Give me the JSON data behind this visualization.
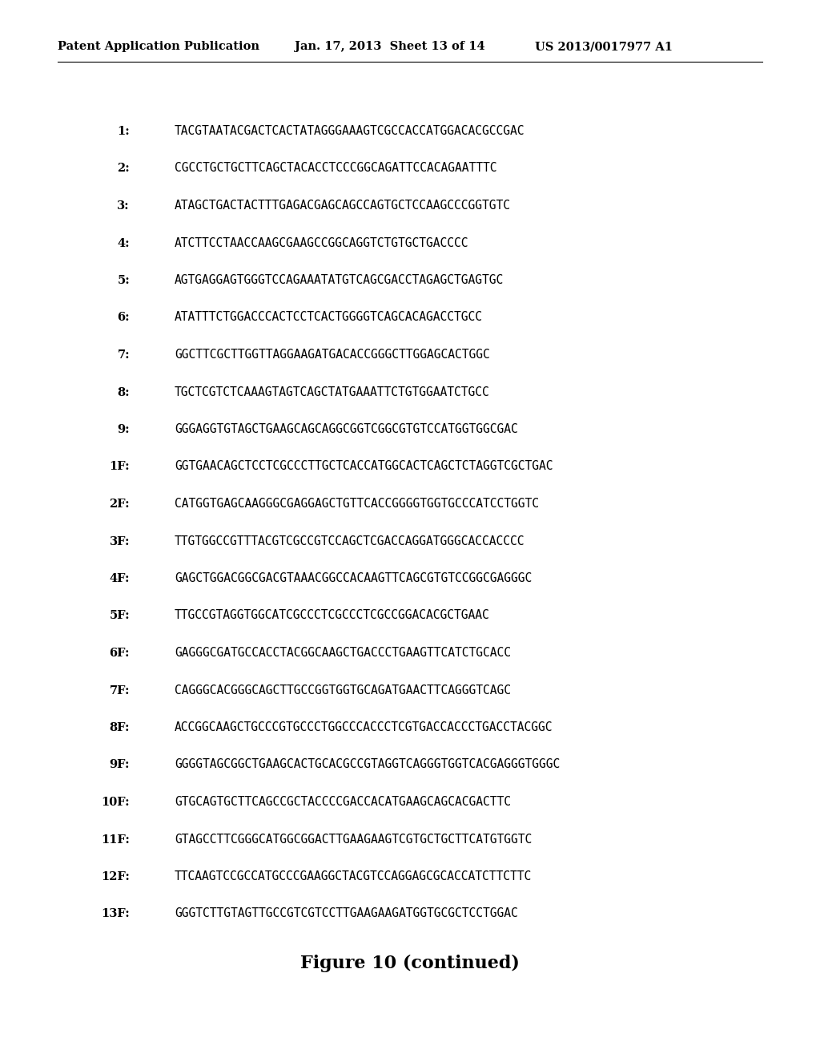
{
  "header_left": "Patent Application Publication",
  "header_center": "Jan. 17, 2013  Sheet 13 of 14",
  "header_right": "US 2013/0017977 A1",
  "sequences": [
    {
      "label": "1:",
      "seq": "TACGTAATACGACTCACTATAGGGAAAGTCGCCACCATGGACACGCCGAC"
    },
    {
      "label": "2:",
      "seq": "CGCCTGCTGCTTCAGCTACACCTCCCGGCAGATTCCACAGAATTTC"
    },
    {
      "label": "3:",
      "seq": "ATAGCTGACTACTTTGAGACGAGCAGCCAGTGCTCCAAGCCCGGTGTC"
    },
    {
      "label": "4:",
      "seq": "ATCTTCCTAACCAAGCGAAGCCGGCAGGTCTGTGCTGACCCC"
    },
    {
      "label": "5:",
      "seq": "AGTGAGGAGTGGGTCCAGAAATATGTCAGCGACCTAGAGCTGAGTGC"
    },
    {
      "label": "6:",
      "seq": "ATATTTCTGGACCCACTCCTCACTGGGGTCAGCACAGACCTGCC"
    },
    {
      "label": "7:",
      "seq": "GGCTTCGCTTGGTTAGGAAGATGACACCGGGCTTGGAGCACTGGC"
    },
    {
      "label": "8:",
      "seq": "TGCTCGTCTCAAAGTAGTCAGCTATGAAATTCTGTGGAATCTGCC"
    },
    {
      "label": "9:",
      "seq": "GGGAGGTGTAGCTGAAGCAGCAGGCGGTCGGCGTGTCCATGGTGGCGAC"
    },
    {
      "label": "1F:",
      "seq": "GGTGAACAGCTCCTCGCCCTTGCTCACCATGGCACTCAGCTCTAGGTCGCTGAC"
    },
    {
      "label": "2F:",
      "seq": "CATGGTGAGCAAGGGCGAGGAGCTGTTCACCGGGGTGGTGCCCATCCTGGTC"
    },
    {
      "label": "3F:",
      "seq": "TTGTGGCCGTTTACGTCGCCGTCCAGCTCGACCAGGATGGGCACCACCCC"
    },
    {
      "label": "4F:",
      "seq": "GAGCTGGACGGCGACGTAAACGGCCACAAGTTCAGCGTGTCCGGCGAGGGC"
    },
    {
      "label": "5F:",
      "seq": "TTGCCGTAGGTGGCATCGCCCTCGCCCTCGCCGGACACGCTGAAC"
    },
    {
      "label": "6F:",
      "seq": "GAGGGCGATGCCACCTACGGCAAGCTGACCCTGAAGTTCATCTGCACC"
    },
    {
      "label": "7F:",
      "seq": "CAGGGCACGGGCAGCTTGCCGGTGGTGCAGATGAACTTCAGGGTCAGC"
    },
    {
      "label": "8F:",
      "seq": "ACCGGCAAGCTGCCCGTGCCCTGGCCCACCCTCGTGACCACCCTGACCTACGGC"
    },
    {
      "label": "9F:",
      "seq": "GGGGTAGCGGCTGAAGCACTGCACGCCGTAGGTCAGGGTGGTCACGAGGGTGGGC"
    },
    {
      "label": "10F:",
      "seq": "GTGCAGTGCTTCAGCCGCTACCCCGACCACATGAAGCAGCACGACTTC"
    },
    {
      "label": "11F:",
      "seq": "GTAGCCTTCGGGCATGGCGGACTTGAAGAAGTCGTGCTGCTTCATGTGGTC"
    },
    {
      "label": "12F:",
      "seq": "TTCAAGTCCGCCATGCCCGAAGGCTACGTCCAGGAGCGCACCATCTTCTTC"
    },
    {
      "label": "13F:",
      "seq": "GGGTCTTGTAGTTGCCGTCGTCCTTGAAGAAGATGGTGCGCTCCTGGAC"
    }
  ],
  "figure_caption": "Figure 10 (continued)",
  "bg_color": "#ffffff",
  "text_color": "#000000",
  "header_fontsize": 10.5,
  "seq_fontsize": 10.5,
  "caption_fontsize": 16
}
